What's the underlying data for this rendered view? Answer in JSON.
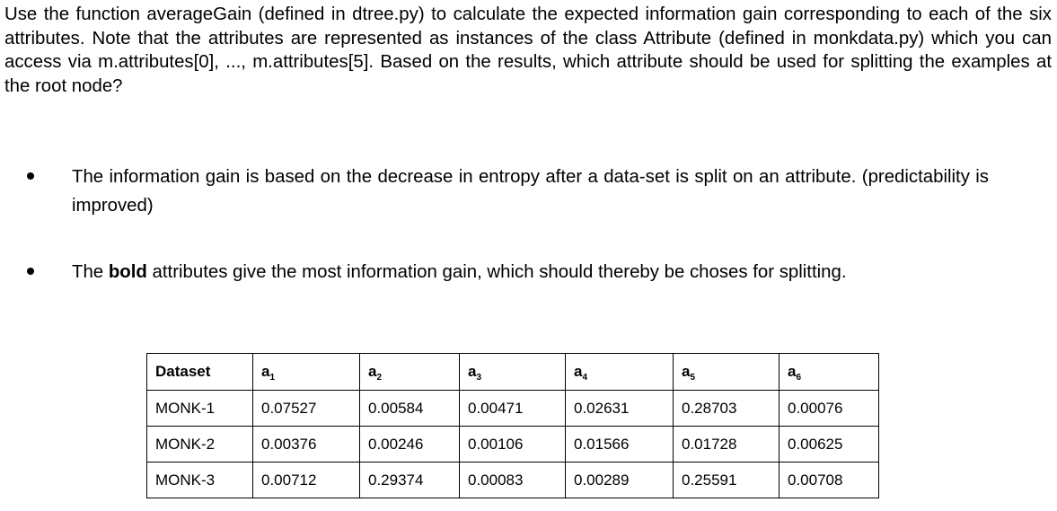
{
  "intro": "Use the function averageGain (defined in dtree.py) to calculate the expected information gain corresponding to each of the six attributes. Note that the attributes are represented as instances of the class Attribute (defined in monkdata.py) which you can access via m.attributes[0], ..., m.attributes[5]. Based on the results, which attribute should be used for splitting the examples at the root node?",
  "bullets": [
    {
      "text": "The information gain is based on the decrease in entropy after a data-set is split on an attribute. (predictability is improved)"
    },
    {
      "before": "The ",
      "bold": "bold",
      "after": " attributes give the most information gain, which should thereby be choses for splitting."
    }
  ],
  "table": {
    "header": {
      "dataset": "Dataset",
      "attr_letter": "a",
      "attrs": [
        "1",
        "2",
        "3",
        "4",
        "5",
        "6"
      ]
    },
    "rows": [
      {
        "name": "MONK-1",
        "values": [
          "0.07527",
          "0.00584",
          "0.00471",
          "0.02631",
          "0.28703",
          "0.00076"
        ],
        "bold_index": 4
      },
      {
        "name": "MONK-2",
        "values": [
          "0.00376",
          "0.00246",
          "0.00106",
          "0.01566",
          "0.01728",
          "0.00625"
        ],
        "bold_index": 4
      },
      {
        "name": "MONK-3",
        "values": [
          "0.00712",
          "0.29374",
          "0.00083",
          "0.00289",
          "0.25591",
          "0.00708"
        ],
        "bold_index": 1
      }
    ]
  }
}
